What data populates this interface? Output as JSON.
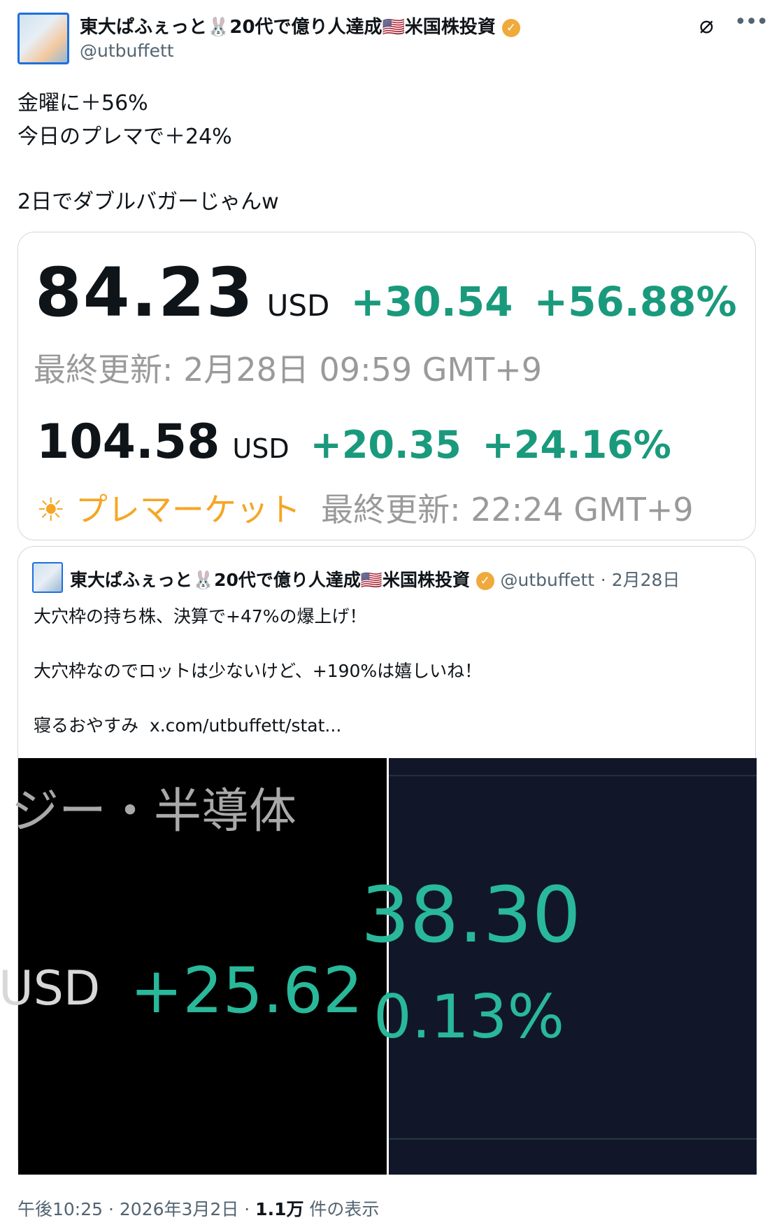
{
  "author": {
    "name": "東大ぱふぇっと🐰20代で億り人達成🇺🇸米国株投資",
    "handle": "@utbuffett",
    "verified_icon": "verified-badge-icon"
  },
  "tweet": {
    "lines": [
      "金曜に＋56%",
      "今日のプレマで＋24%",
      "2日でダブルバガーじゃんw"
    ]
  },
  "quote_card": {
    "price1": "84.23",
    "currency": "USD",
    "change1": "+30.54",
    "pct1": "+56.88%",
    "updated1": "最終更新: 2月28日 09:59 GMT+9",
    "price2": "104.58",
    "change2": "+20.35",
    "pct2": "+24.16%",
    "premarket_label": "プレマーケット",
    "updated2": "最終更新: 22:24 GMT+9",
    "colors": {
      "up": "#1a9a7c",
      "premarket": "#f5a623"
    }
  },
  "quoted_tweet": {
    "name": "東大ぱふぇっと🐰20代で億り人達成🇺🇸米国株投資",
    "handle": "@utbuffett",
    "date": "· 2月28日",
    "lines": [
      "大穴枠の持ち株、決算で+47%の爆上げ！",
      "大穴枠なのでロットは少ないけど、+190%は嬉しいね！",
      "寝るおやすみ"
    ],
    "link": "x.com/utbuffett/stat...",
    "image_left": {
      "text1": "ジー・半導体",
      "text2": "USD",
      "text3": "+25.62 -"
    },
    "image_right": {
      "text1": "38.30",
      "text2": "0.13%"
    }
  },
  "footer": {
    "time": "午後10:25 · 2026年3月2日 · ",
    "views": "1.1万",
    "views_label": " 件の表示"
  }
}
